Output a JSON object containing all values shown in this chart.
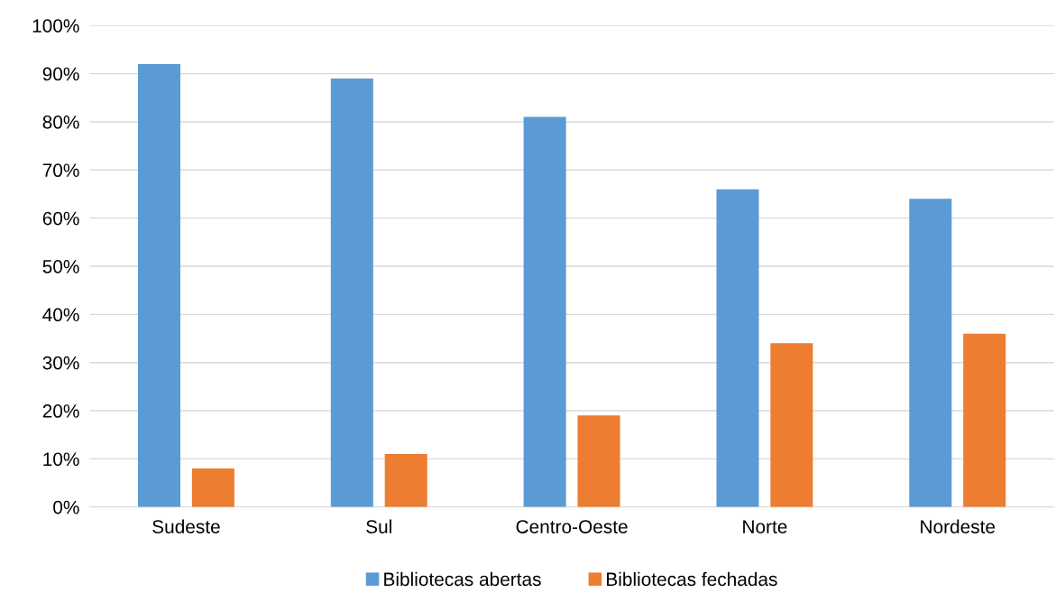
{
  "chart_data": {
    "type": "bar",
    "categories": [
      "Sudeste",
      "Sul",
      "Centro-Oeste",
      "Norte",
      "Nordeste"
    ],
    "series": [
      {
        "name": "Bibliotecas abertas",
        "color": "#5b9bd5",
        "values": [
          92,
          89,
          81,
          66,
          64
        ]
      },
      {
        "name": "Bibliotecas fechadas",
        "color": "#ed7d31",
        "values": [
          8,
          11,
          19,
          34,
          36
        ]
      }
    ],
    "ylim": [
      0,
      100
    ],
    "yticks": [
      {
        "value": 0,
        "label": "0%"
      },
      {
        "value": 10,
        "label": "10%"
      },
      {
        "value": 20,
        "label": "20%"
      },
      {
        "value": 30,
        "label": "30%"
      },
      {
        "value": 40,
        "label": "40%"
      },
      {
        "value": 50,
        "label": "50%"
      },
      {
        "value": 60,
        "label": "60%"
      },
      {
        "value": 70,
        "label": "70%"
      },
      {
        "value": 80,
        "label": "80%"
      },
      {
        "value": 90,
        "label": "90%"
      },
      {
        "value": 100,
        "label": "100%"
      }
    ],
    "grid": "y",
    "legend": "bottom"
  }
}
